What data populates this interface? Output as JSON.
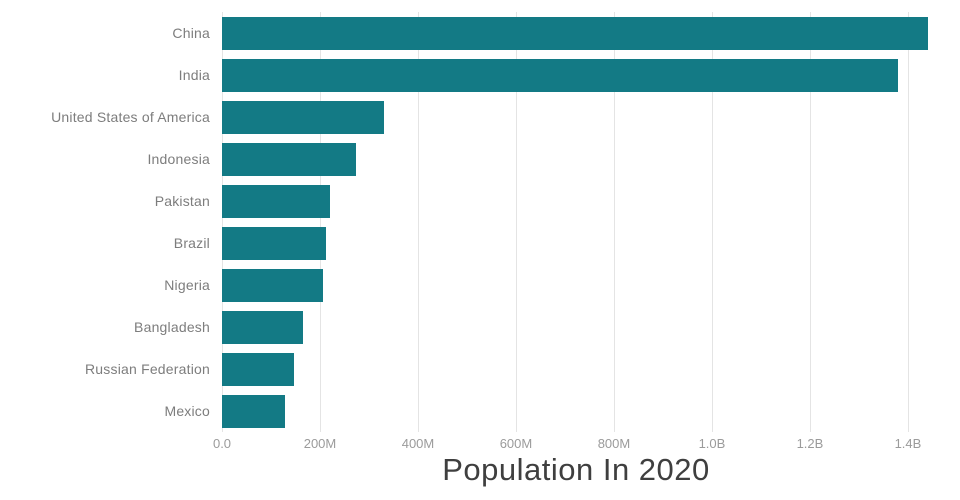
{
  "chart_data": {
    "type": "bar",
    "orientation": "horizontal",
    "title": "Population In 2020",
    "categories": [
      "China",
      "India",
      "United States of America",
      "Indonesia",
      "Pakistan",
      "Brazil",
      "Nigeria",
      "Bangladesh",
      "Russian Federation",
      "Mexico"
    ],
    "values": [
      1440000000,
      1380000000,
      331000000,
      273000000,
      220000000,
      212000000,
      206000000,
      165000000,
      146000000,
      129000000
    ],
    "xlabel": "",
    "ylabel": "",
    "axis": {
      "min": 0,
      "max": 1445000000,
      "ticks": [
        {
          "label": "0.0",
          "value": 0
        },
        {
          "label": "200M",
          "value": 200000000
        },
        {
          "label": "400M",
          "value": 400000000
        },
        {
          "label": "600M",
          "value": 600000000
        },
        {
          "label": "800M",
          "value": 800000000
        },
        {
          "label": "1.0B",
          "value": 1000000000
        },
        {
          "label": "1.2B",
          "value": 1200000000
        },
        {
          "label": "1.4B",
          "value": 1400000000
        }
      ]
    },
    "grid": true,
    "legend": false,
    "colors": {
      "bar": "#137a85",
      "grid": "#e4e4e4",
      "tick_label": "#9b9b9b",
      "category_label": "#7d7d7d",
      "title": "#3f3f3f",
      "background": "#ffffff"
    }
  }
}
